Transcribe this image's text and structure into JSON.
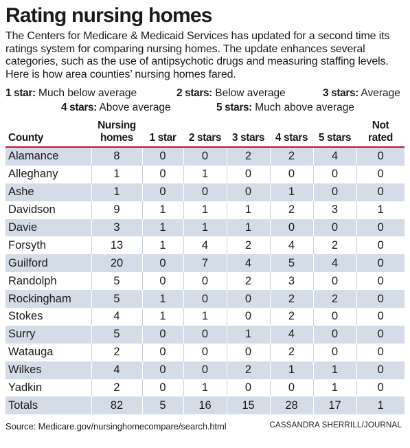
{
  "title": "Rating nursing homes",
  "intro": "The Centers for Medicare & Medicaid Services has updated for a second time its ratings system for comparing nursing homes. The update enhances several categories, such as the use of antipsychotic drugs and measuring staffing levels. Here is how area counties’ nursing homes fared.",
  "legend": [
    {
      "key": "1 star:",
      "desc": "Much below average"
    },
    {
      "key": "2 stars:",
      "desc": "Below average"
    },
    {
      "key": "3 stars:",
      "desc": "Average"
    },
    {
      "key": "4 stars:",
      "desc": "Above average"
    },
    {
      "key": "5 stars:",
      "desc": "Much above average"
    }
  ],
  "chart_data": {
    "type": "table",
    "columns": [
      "County",
      "Nursing homes",
      "1 star",
      "2 stars",
      "3 stars",
      "4 stars",
      "5 stars",
      "Not rated"
    ],
    "rows": [
      [
        "Alamance",
        8,
        0,
        0,
        2,
        2,
        4,
        0
      ],
      [
        "Alleghany",
        1,
        0,
        1,
        0,
        0,
        0,
        0
      ],
      [
        "Ashe",
        1,
        0,
        0,
        0,
        1,
        0,
        0
      ],
      [
        "Davidson",
        9,
        1,
        1,
        1,
        2,
        3,
        1
      ],
      [
        "Davie",
        3,
        1,
        1,
        1,
        0,
        0,
        0
      ],
      [
        "Forsyth",
        13,
        1,
        4,
        2,
        4,
        2,
        0
      ],
      [
        "Guilford",
        20,
        0,
        7,
        4,
        5,
        4,
        0
      ],
      [
        "Randolph",
        5,
        0,
        0,
        2,
        3,
        0,
        0
      ],
      [
        "Rockingham",
        5,
        1,
        0,
        0,
        2,
        2,
        0
      ],
      [
        "Stokes",
        4,
        1,
        1,
        0,
        2,
        0,
        0
      ],
      [
        "Surry",
        5,
        0,
        0,
        1,
        4,
        0,
        0
      ],
      [
        "Watauga",
        2,
        0,
        0,
        0,
        2,
        0,
        0
      ],
      [
        "Wilkes",
        4,
        0,
        0,
        2,
        1,
        1,
        0
      ],
      [
        "Yadkin",
        2,
        0,
        1,
        0,
        0,
        1,
        0
      ],
      [
        "Totals",
        82,
        5,
        16,
        15,
        28,
        17,
        1
      ]
    ]
  },
  "source": "Source: Medicare.gov/nursinghomecompare/search.html",
  "credit": "CASSANDRA SHERRILL/JOURNAL",
  "colors": {
    "accent_rule": "#c8102e",
    "row_shade": "#d4dce8"
  }
}
